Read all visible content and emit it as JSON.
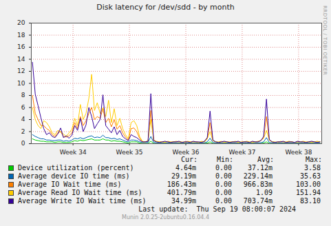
{
  "chart_data": {
    "type": "line",
    "title": "Disk latency for /dev/sdd - by month",
    "x": [
      33.28,
      33.33,
      33.38,
      33.43,
      33.48,
      33.53,
      33.58,
      33.63,
      33.68,
      33.73,
      33.78,
      33.83,
      33.88,
      33.93,
      33.98,
      34.03,
      34.08,
      34.13,
      34.18,
      34.23,
      34.28,
      34.33,
      34.38,
      34.43,
      34.48,
      34.53,
      34.58,
      34.63,
      34.68,
      34.73,
      34.78,
      34.83,
      34.88,
      34.93,
      34.98,
      35.03,
      35.08,
      35.13,
      35.18,
      35.23,
      35.28,
      35.33,
      35.38,
      35.43,
      35.48,
      35.53,
      35.58,
      35.63,
      35.68,
      35.73,
      35.78,
      35.83,
      35.88,
      35.93,
      35.98,
      36.03,
      36.08,
      36.13,
      36.18,
      36.23,
      36.28,
      36.33,
      36.38,
      36.43,
      36.48,
      36.53,
      36.58,
      36.63,
      36.68,
      36.73,
      36.78,
      36.83,
      36.88,
      36.93,
      36.98,
      37.03,
      37.08,
      37.13,
      37.18,
      37.23,
      37.28,
      37.33,
      37.38,
      37.43,
      37.48,
      37.53,
      37.58,
      37.63,
      37.68,
      37.73,
      37.78,
      37.83,
      37.88,
      37.93,
      37.98,
      38.03,
      38.08,
      38.13,
      38.18,
      38.23,
      38.28,
      38.33,
      38.38
    ],
    "xlim": [
      33.26,
      38.41
    ],
    "xticks": [
      {
        "value": 34,
        "label": "Week 34"
      },
      {
        "value": 35,
        "label": "Week 35"
      },
      {
        "value": 36,
        "label": "Week 36"
      },
      {
        "value": 37,
        "label": "Week 37"
      },
      {
        "value": 38,
        "label": "Week 38"
      }
    ],
    "ylim": [
      0,
      20
    ],
    "yticks": [
      0,
      2,
      4,
      6,
      8,
      10,
      12,
      14,
      16,
      18,
      20
    ],
    "grid": true,
    "legend": "bottom",
    "legend_columns": [
      "Cur:",
      "Min:",
      "Avg:",
      "Max:"
    ],
    "series": [
      {
        "name": "Device utilization (percent)",
        "color": "#00cc00",
        "cur": {
          "value": 0.00464,
          "label": "4.64m"
        },
        "min": {
          "value": 0,
          "label": "0.00"
        },
        "avg": {
          "value": 0.03712,
          "label": "37.12m"
        },
        "max": {
          "value": 3.58,
          "label": "3.58"
        },
        "values": [
          0.8,
          0.6,
          0.5,
          0.4,
          0.4,
          0.3,
          0.3,
          0.3,
          0.2,
          0.3,
          0.3,
          0.2,
          0.2,
          0.2,
          0.3,
          0.5,
          0.4,
          0.6,
          0.5,
          0.6,
          0.7,
          0.8,
          0.6,
          0.6,
          0.6,
          0.8,
          0.6,
          0.6,
          0.4,
          0.5,
          0.4,
          0.4,
          0.3,
          0.2,
          0.1,
          0.3,
          0.3,
          0.3,
          0.1,
          0.05,
          0.05,
          0.05,
          0.4,
          0.05,
          0.05,
          0.05,
          0.05,
          0.05,
          0.05,
          0.05,
          0.05,
          0.05,
          0.05,
          0.05,
          0.05,
          0.05,
          0.05,
          0.05,
          0.05,
          0.05,
          0.05,
          0.05,
          0.1,
          0.3,
          0.05,
          0.05,
          0.05,
          0.05,
          0.05,
          0.05,
          0.05,
          0.05,
          0.05,
          0.05,
          0.05,
          0.05,
          0.05,
          0.05,
          0.05,
          0.05,
          0.05,
          0.05,
          0.1,
          0.3,
          0.05,
          0.05,
          0.05,
          0.05,
          0.05,
          0.05,
          0.05,
          0.05,
          0.05,
          0.05,
          0.05,
          0.05,
          0.05,
          0.05,
          0.05,
          0.05,
          0.05,
          0.05,
          0.05
        ]
      },
      {
        "name": "Average device IO time (ms)",
        "color": "#0066b3",
        "cur": {
          "value": 0.02919,
          "label": "29.19m"
        },
        "min": {
          "value": 0,
          "label": "0.00"
        },
        "avg": {
          "value": 0.22914,
          "label": "229.14m"
        },
        "max": {
          "value": 35.63,
          "label": "35.63"
        },
        "values": [
          1.5,
          1.2,
          1.0,
          0.8,
          0.8,
          0.6,
          0.6,
          0.5,
          0.5,
          0.6,
          0.6,
          0.4,
          0.5,
          0.4,
          0.6,
          0.9,
          0.8,
          1.0,
          0.8,
          1.0,
          1.2,
          1.3,
          1.0,
          1.1,
          1.0,
          1.4,
          1.0,
          1.0,
          0.8,
          0.9,
          0.7,
          0.8,
          0.6,
          0.4,
          0.3,
          0.6,
          0.6,
          0.5,
          0.3,
          0.2,
          0.2,
          0.2,
          1.2,
          0.2,
          0.15,
          0.15,
          0.15,
          0.15,
          0.15,
          0.15,
          0.15,
          0.15,
          0.15,
          0.15,
          0.15,
          0.15,
          0.15,
          0.15,
          0.15,
          0.15,
          0.15,
          0.15,
          0.3,
          0.9,
          0.2,
          0.15,
          0.15,
          0.15,
          0.15,
          0.15,
          0.15,
          0.15,
          0.15,
          0.15,
          0.15,
          0.15,
          0.15,
          0.15,
          0.15,
          0.15,
          0.15,
          0.15,
          0.3,
          1.0,
          0.2,
          0.15,
          0.15,
          0.15,
          0.15,
          0.15,
          0.15,
          0.15,
          0.15,
          0.15,
          0.15,
          0.15,
          0.15,
          0.15,
          0.15,
          0.15,
          0.15,
          0.15,
          0.15
        ]
      },
      {
        "name": "Average IO Wait time (ms)",
        "color": "#ff8000",
        "cur": {
          "value": 0.18643,
          "label": "186.43m"
        },
        "min": {
          "value": 0,
          "label": "0.00"
        },
        "avg": {
          "value": 0.96683,
          "label": "966.83m"
        },
        "max": {
          "value": 103,
          "label": "103.00"
        },
        "values": [
          8.0,
          5.0,
          4.0,
          3.0,
          3.0,
          2.5,
          2.2,
          1.5,
          1.2,
          1.8,
          2.0,
          1.2,
          1.1,
          1.3,
          1.8,
          3.5,
          2.5,
          4.5,
          3.0,
          3.8,
          5.0,
          6.0,
          4.0,
          4.5,
          4.2,
          5.8,
          3.5,
          4.2,
          2.8,
          4.0,
          2.4,
          3.0,
          1.8,
          1.1,
          0.6,
          2.5,
          2.6,
          2.0,
          0.9,
          0.3,
          0.3,
          0.4,
          5.5,
          0.5,
          0.3,
          0.3,
          0.3,
          0.3,
          0.3,
          0.2,
          0.3,
          0.3,
          0.3,
          0.2,
          0.3,
          0.3,
          0.3,
          0.3,
          0.3,
          0.2,
          0.3,
          0.3,
          0.9,
          3.5,
          0.5,
          0.3,
          0.2,
          0.3,
          0.3,
          0.3,
          0.2,
          0.3,
          0.3,
          0.3,
          0.2,
          0.3,
          0.3,
          0.2,
          0.3,
          0.3,
          0.3,
          0.5,
          1.0,
          4.5,
          0.6,
          0.3,
          0.2,
          0.3,
          0.3,
          0.3,
          0.2,
          0.3,
          0.3,
          0.2,
          0.3,
          0.3,
          0.3,
          0.2,
          0.3,
          0.3,
          0.3,
          0.3,
          0.3
        ]
      },
      {
        "name": "Average Read IO Wait time (ms)",
        "color": "#ffcc00",
        "cur": {
          "value": 0.40179,
          "label": "401.79m"
        },
        "min": {
          "value": 0,
          "label": "0.00"
        },
        "avg": {
          "value": 1.09,
          "label": "1.09"
        },
        "max": {
          "value": 151.94,
          "label": "151.94"
        },
        "values": [
          6.0,
          4.0,
          3.0,
          2.5,
          3.8,
          3.5,
          2.8,
          1.8,
          1.5,
          2.2,
          2.0,
          1.6,
          1.2,
          1.8,
          2.4,
          4.2,
          3.0,
          6.5,
          4.0,
          5.0,
          7.5,
          11.5,
          5.5,
          6.8,
          5.0,
          6.0,
          4.5,
          7.2,
          3.5,
          5.8,
          3.0,
          4.2,
          2.5,
          1.5,
          0.8,
          3.5,
          3.8,
          3.0,
          1.2,
          0.4,
          0.3,
          0.5,
          4.0,
          0.6,
          0.4,
          0.3,
          0.3,
          0.2,
          0.4,
          0.3,
          0.3,
          0.4,
          0.3,
          0.3,
          0.2,
          0.4,
          0.3,
          0.3,
          0.3,
          0.2,
          0.4,
          0.3,
          0.8,
          2.0,
          0.5,
          0.3,
          0.3,
          0.4,
          0.2,
          0.3,
          0.3,
          0.3,
          0.4,
          0.2,
          0.3,
          0.3,
          0.4,
          0.3,
          0.2,
          0.3,
          0.4,
          0.5,
          0.9,
          2.2,
          0.6,
          0.3,
          0.3,
          0.2,
          0.4,
          0.3,
          0.3,
          0.4,
          0.3,
          0.2,
          0.3,
          0.3,
          0.4,
          0.3,
          0.3,
          0.2,
          0.3,
          0.4,
          0.3
        ]
      },
      {
        "name": "Average Write IO Wait time (ms)",
        "color": "#330099",
        "cur": {
          "value": 0.03499,
          "label": "34.99m"
        },
        "min": {
          "value": 0,
          "label": "0.00"
        },
        "avg": {
          "value": 0.70374,
          "label": "703.74m"
        },
        "max": {
          "value": 83.1,
          "label": "83.10"
        },
        "values": [
          13.5,
          8.2,
          6.3,
          4.3,
          2.5,
          1.5,
          1.8,
          1.2,
          1.0,
          1.6,
          2.6,
          1.0,
          1.3,
          0.9,
          1.4,
          3.0,
          2.2,
          4.2,
          2.0,
          3.1,
          6.0,
          4.5,
          2.5,
          3.3,
          4.0,
          8.1,
          3.0,
          2.4,
          1.8,
          2.8,
          1.5,
          2.2,
          1.2,
          0.8,
          0.5,
          1.5,
          1.2,
          1.0,
          0.6,
          0.3,
          0.3,
          0.4,
          8.3,
          0.5,
          0.3,
          0.2,
          0.3,
          0.4,
          0.3,
          0.2,
          0.3,
          0.3,
          0.4,
          0.2,
          0.3,
          0.3,
          0.2,
          0.4,
          0.3,
          0.3,
          0.2,
          0.4,
          1.0,
          5.4,
          0.6,
          0.3,
          0.2,
          0.3,
          0.4,
          0.3,
          0.2,
          0.3,
          0.3,
          0.4,
          0.2,
          0.3,
          0.3,
          0.2,
          0.4,
          0.3,
          0.3,
          0.5,
          1.2,
          7.4,
          0.7,
          0.3,
          0.2,
          0.3,
          0.3,
          0.4,
          0.2,
          0.3,
          0.3,
          0.2,
          0.4,
          0.3,
          0.3,
          0.2,
          0.3,
          0.4,
          0.3,
          0.2,
          0.3
        ]
      }
    ],
    "last_update": "Last update:  Thu Sep 19 08:00:07 2024",
    "credit": "Munin 2.0.25-2ubuntu0.16.04.4",
    "watermark": "RRDTOOL / TOBI OETIKER"
  }
}
